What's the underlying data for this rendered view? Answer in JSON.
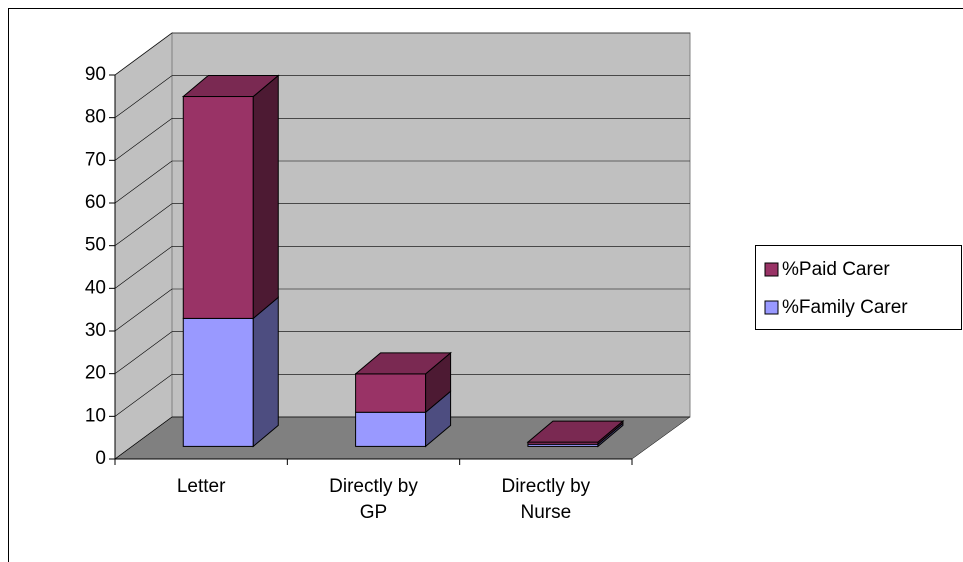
{
  "chart_data": {
    "type": "bar3d_stacked",
    "categories": [
      "Letter",
      "Directly by GP",
      "Directly by Nurse"
    ],
    "series": [
      {
        "name": "%Family Carer",
        "color": "#9999ff",
        "values": [
          30,
          8,
          0.5
        ]
      },
      {
        "name": "%Paid Carer",
        "color": "#993366",
        "values": [
          52,
          9,
          0.5
        ]
      }
    ],
    "ylim": [
      0,
      90
    ],
    "yticks": [
      0,
      10,
      20,
      30,
      40,
      50,
      60,
      70,
      80,
      90
    ],
    "grid": true,
    "legend": "right"
  }
}
